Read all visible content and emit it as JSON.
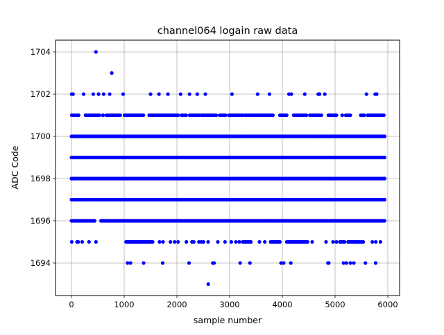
{
  "chart_data": {
    "type": "scatter",
    "title": "channel064 logain raw data",
    "xlabel": "sample number",
    "ylabel": "ADC Code",
    "xlim": [
      -300,
      6200
    ],
    "ylim": [
      1692.6,
      1704.7
    ],
    "xticks": [
      0,
      1000,
      2000,
      3000,
      4000,
      5000,
      6000
    ],
    "yticks": [
      1694,
      1696,
      1698,
      1700,
      1702,
      1704
    ],
    "grid": true,
    "marker_color": "#0000ff",
    "series": [
      {
        "name": "1704",
        "y": 1704,
        "x": [
          465
        ]
      },
      {
        "name": "1703",
        "y": 1703,
        "x": [
          765
        ]
      },
      {
        "name": "1702",
        "y": 1702,
        "x": [
          5,
          30,
          230,
          415,
          515,
          610,
          725,
          980,
          1500,
          1660,
          1830,
          2070,
          2240,
          2385,
          2540,
          3045,
          3530,
          3755,
          4125,
          4170,
          4425,
          4680,
          4705,
          4805,
          5595,
          5760,
          5790
        ]
      },
      {
        "name": "1701",
        "y": 1701,
        "segments": [
          [
            5,
            135
          ],
          [
            267,
            530
          ],
          [
            597,
            597
          ],
          [
            662,
            925
          ],
          [
            1005,
            1364
          ],
          [
            1474,
            2022
          ],
          [
            2088,
            2175
          ],
          [
            2241,
            2417
          ],
          [
            2461,
            2680
          ],
          [
            2724,
            2746
          ],
          [
            2812,
            2921
          ],
          [
            2987,
            3250
          ],
          [
            3294,
            3820
          ],
          [
            3952,
            4083
          ],
          [
            4215,
            4456
          ],
          [
            4522,
            4741
          ],
          [
            4873,
            5026
          ],
          [
            5136,
            5136
          ],
          [
            5202,
            5290
          ],
          [
            5487,
            5553
          ],
          [
            5618,
            5925
          ]
        ]
      },
      {
        "name": "1700",
        "y": 1700,
        "segments": [
          [
            0,
            5940
          ]
        ]
      },
      {
        "name": "1699",
        "y": 1699,
        "segments": [
          [
            0,
            5940
          ]
        ]
      },
      {
        "name": "1698",
        "y": 1698,
        "segments": [
          [
            0,
            5940
          ]
        ]
      },
      {
        "name": "1697",
        "y": 1697,
        "segments": [
          [
            0,
            5940
          ]
        ]
      },
      {
        "name": "1696",
        "y": 1696,
        "segments": [
          [
            0,
            440
          ],
          [
            560,
            5940
          ]
        ]
      },
      {
        "name": "1695",
        "y": 1695,
        "x": [
          5,
          105,
          127,
          202,
          333,
          465,
          1671,
          1737,
          1877,
          1956,
          2022,
          2180,
          2285,
          2320,
          2417,
          2460,
          2505,
          2592,
          2776,
          2912,
          3031,
          3118,
          3184,
          3566,
          3667,
          4566,
          4829,
          4961,
          5026,
          5706,
          5772,
          5860
        ],
        "segments": [
          [
            1035,
            1539
          ],
          [
            3250,
            3404
          ],
          [
            3776,
            3952
          ],
          [
            4083,
            4478
          ],
          [
            5092,
            5180
          ],
          [
            5246,
            5531
          ]
        ]
      },
      {
        "name": "1694",
        "y": 1694,
        "x": [
          1065,
          1120,
          1370,
          1730,
          2230,
          2680,
          2705,
          3200,
          3385,
          3975,
          4025,
          4160,
          4865,
          4880,
          5160,
          5215,
          5290,
          5355,
          5575,
          5770
        ]
      },
      {
        "name": "1693",
        "y": 1693,
        "x": [
          2595
        ]
      }
    ]
  }
}
